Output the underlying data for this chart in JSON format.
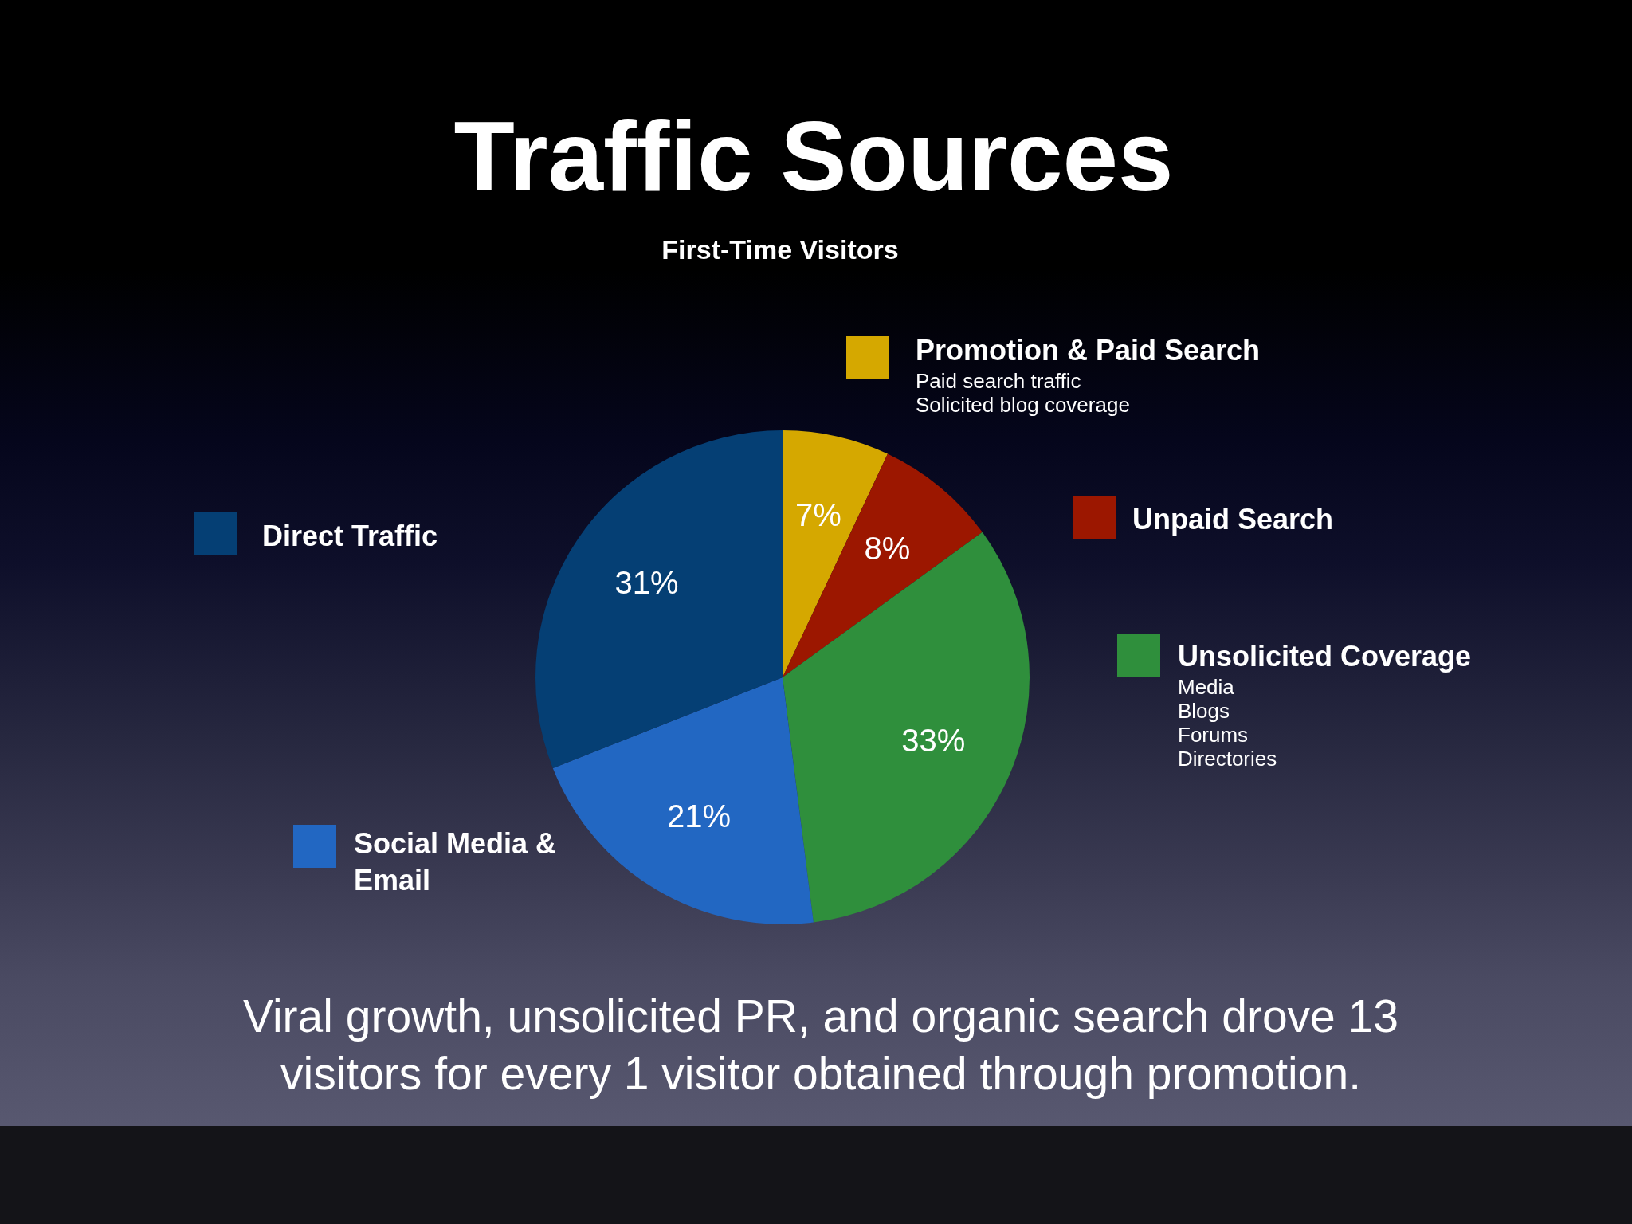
{
  "chart_data": {
    "type": "pie",
    "title": "Traffic Sources",
    "subtitle": "First-Time Visitors",
    "categories": [
      "Promotion & Paid Search",
      "Unpaid Search",
      "Unsolicited Coverage",
      "Social Media & Email",
      "Direct Traffic"
    ],
    "values": [
      7,
      8,
      33,
      21,
      31
    ],
    "colors": [
      "#d5a800",
      "#9c1700",
      "#2f8f3c",
      "#2267c2",
      "#053f74"
    ],
    "value_labels": [
      "7%",
      "8%",
      "33%",
      "21%",
      "31%"
    ],
    "legend": true,
    "annotations": [
      {
        "text": "Paid search traffic",
        "x": "Promotion & Paid Search"
      },
      {
        "text": "Solicited blog coverage",
        "x": "Promotion & Paid Search"
      },
      {
        "text": "Media",
        "x": "Unsolicited Coverage"
      },
      {
        "text": "Blogs",
        "x": "Unsolicited Coverage"
      },
      {
        "text": "Forums",
        "x": "Unsolicited Coverage"
      },
      {
        "text": "Directories",
        "x": "Unsolicited Coverage"
      },
      "Viral growth, unsolicited PR, and organic search drove 13 visitors for every 1 visitor obtained through promotion."
    ]
  }
}
